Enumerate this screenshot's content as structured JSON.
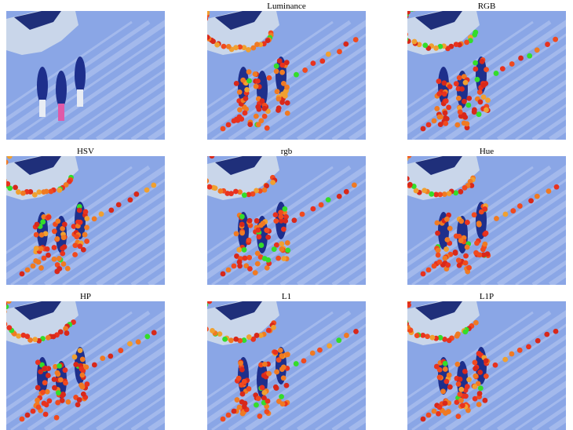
{
  "panels": [
    "Luminance",
    "RGB",
    "HSV",
    "rgb",
    "Hue",
    "HP",
    "L1",
    "L1P"
  ]
}
